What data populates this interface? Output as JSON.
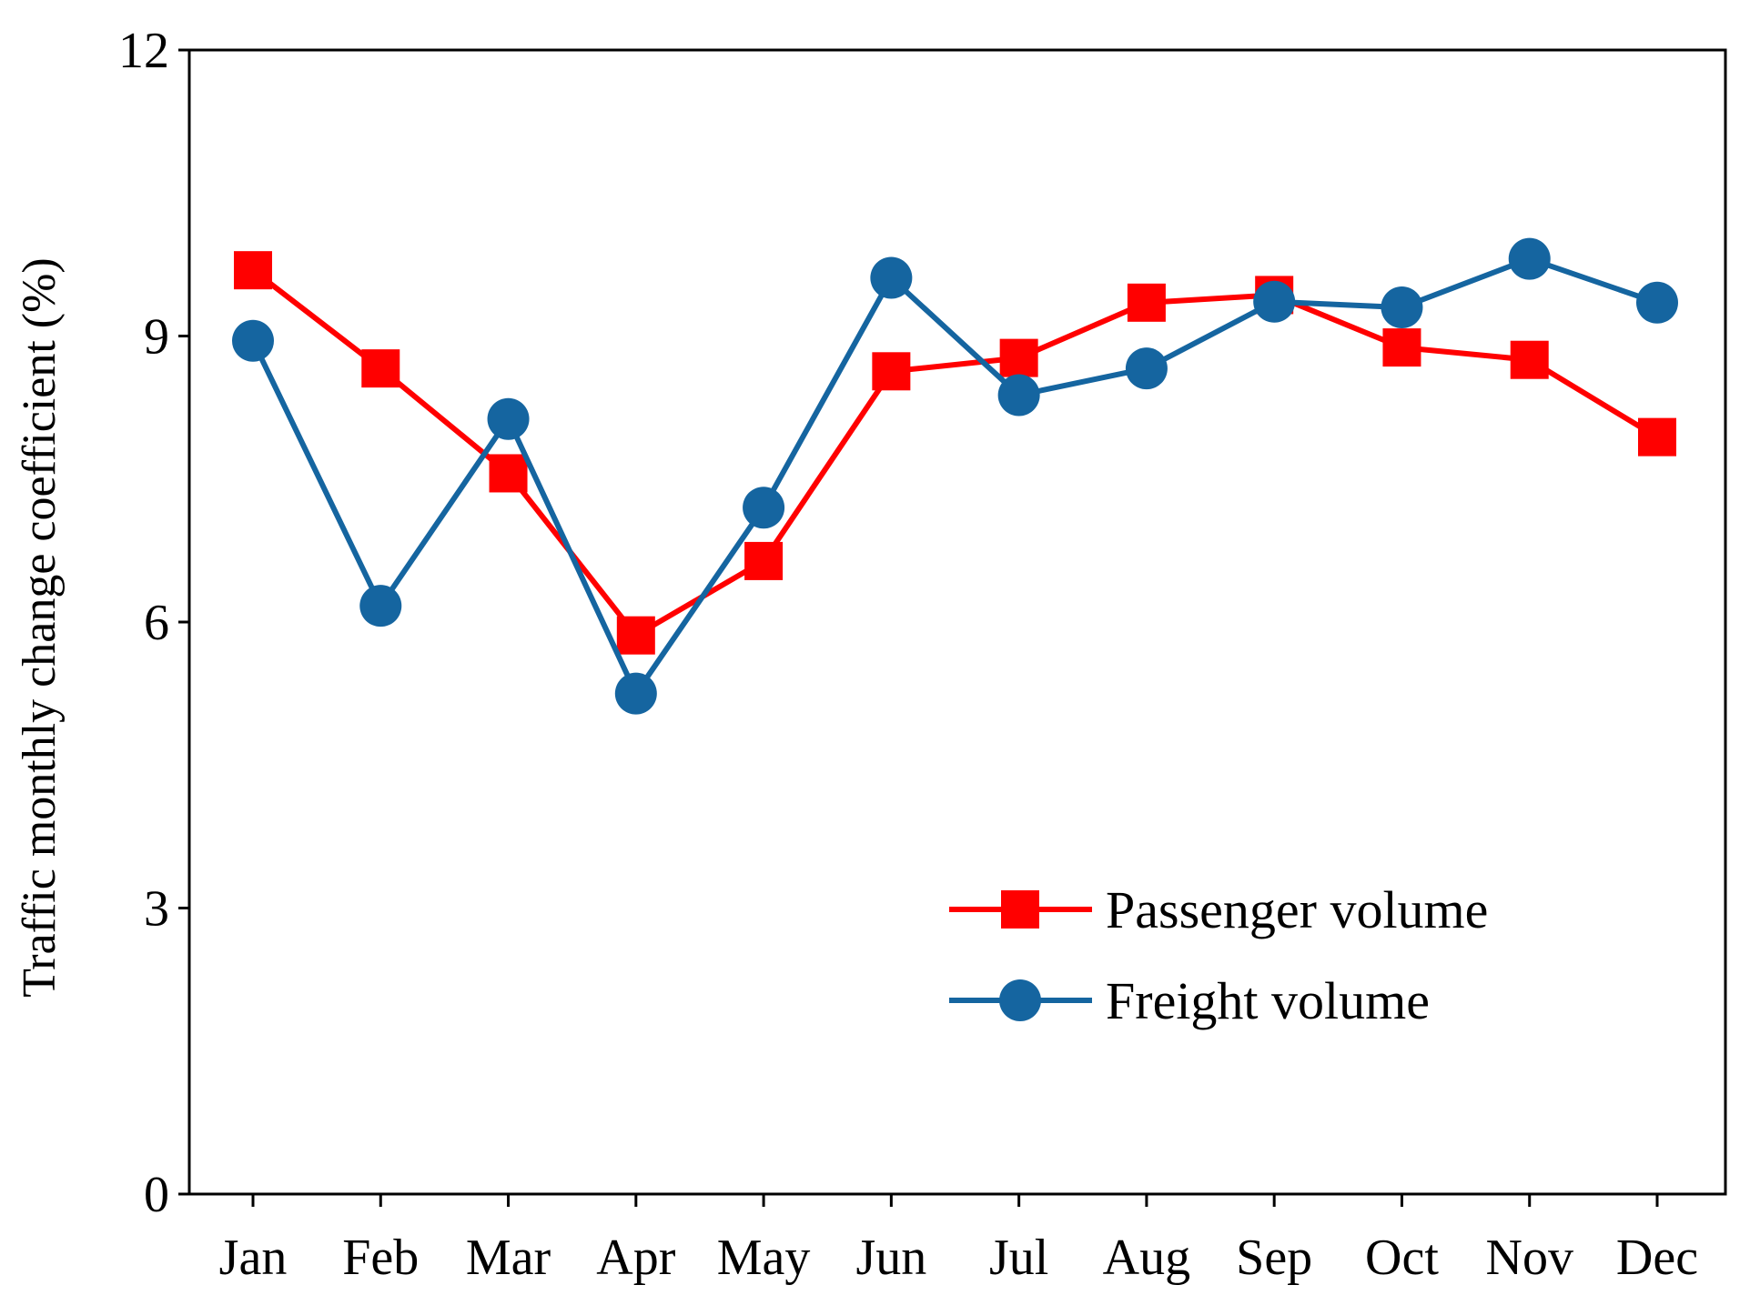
{
  "chart_data": {
    "type": "line",
    "title": "",
    "xlabel": "",
    "ylabel": "Traffic monthly change coefficient (%)",
    "categories": [
      "Jan",
      "Feb",
      "Mar",
      "Apr",
      "May",
      "Jun",
      "Jul",
      "Aug",
      "Sep",
      "Oct",
      "Nov",
      "Dec"
    ],
    "ylim": [
      0,
      12
    ],
    "yticks": [
      0,
      3,
      6,
      9,
      12
    ],
    "ytick_labels": [
      "0",
      "3",
      "6",
      "9",
      "12"
    ],
    "grid": false,
    "legend_position": "bottom-right",
    "series": [
      {
        "name": "Passenger volume",
        "color": "#ff0000",
        "marker": "square",
        "values": [
          9.69,
          8.66,
          7.56,
          5.86,
          6.64,
          8.63,
          8.77,
          9.35,
          9.43,
          8.88,
          8.75,
          7.94
        ]
      },
      {
        "name": "Freight volume",
        "color": "#1565a0",
        "marker": "circle",
        "values": [
          8.95,
          6.17,
          8.13,
          5.25,
          7.2,
          9.61,
          8.38,
          8.66,
          9.36,
          9.3,
          9.81,
          9.35
        ]
      }
    ]
  }
}
